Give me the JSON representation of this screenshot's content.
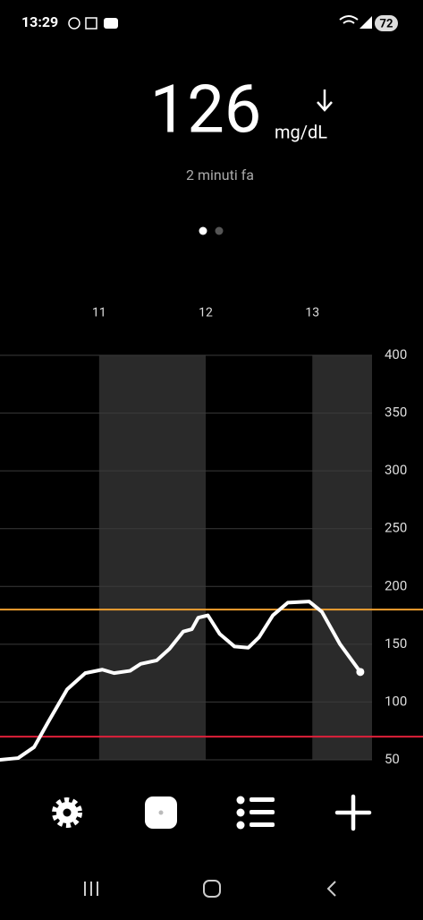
{
  "status_bar": {
    "time": "13:29",
    "battery": "72"
  },
  "reading": {
    "value": "126",
    "unit": "mg/dL",
    "age": "2 minuti fa"
  },
  "chart_data": {
    "type": "line",
    "x": [
      10.07,
      10.24,
      10.39,
      10.53,
      10.7,
      10.87,
      11.03,
      11.14,
      11.29,
      11.39,
      11.54,
      11.66,
      11.79,
      11.87,
      11.93,
      12.02,
      12.13,
      12.27,
      12.4,
      12.5,
      12.63,
      12.77,
      12.97,
      13.09,
      13.26,
      13.45
    ],
    "series": [
      {
        "color": "#ffffff",
        "values": [
          50,
          51.5,
          61,
          84,
          111,
          125,
          128,
          125,
          127,
          133,
          136,
          146,
          161,
          163,
          173,
          175,
          159,
          148,
          147,
          156,
          175,
          186,
          187,
          178,
          150,
          126
        ]
      }
    ],
    "xlim": [
      10.07,
      13.56
    ],
    "xticks": [
      11,
      12,
      13
    ],
    "ylim": [
      50,
      400
    ],
    "yticks": [
      50,
      100,
      150,
      200,
      250,
      300,
      350,
      400
    ],
    "grid": true,
    "targets": [
      {
        "value": 180,
        "color": "#f0a030"
      },
      {
        "value": 70,
        "color": "#e0203a"
      }
    ]
  }
}
